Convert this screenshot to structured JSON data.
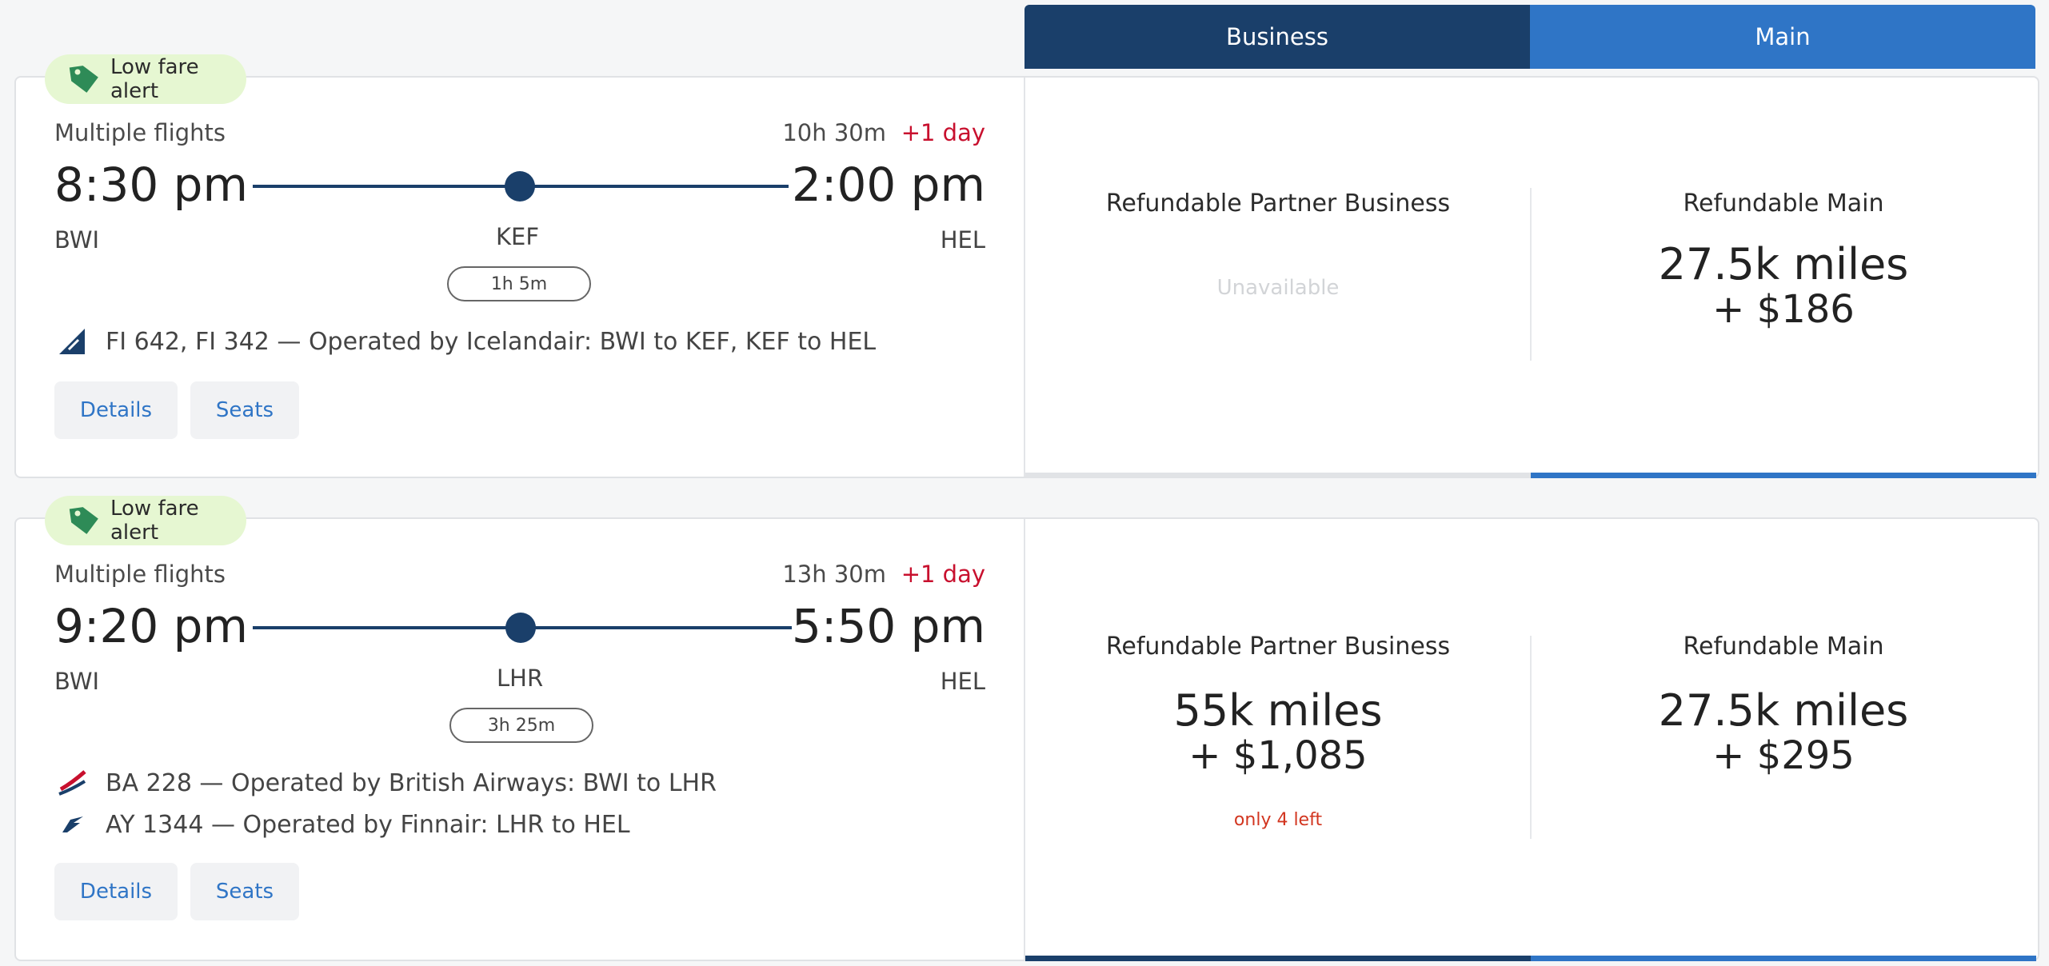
{
  "fare_header": {
    "business": "Business",
    "main": "Main"
  },
  "flights": [
    {
      "badge": "Low fare alert",
      "label": "Multiple flights",
      "duration": "10h 30m",
      "plus_day": "+1 day",
      "depart_time": "8:30 pm",
      "arrive_time": "2:00 pm",
      "origin": "BWI",
      "stop": "KEF",
      "destination": "HEL",
      "layover": "1h 5m",
      "legs": [
        {
          "text": "FI 642, FI 342 — Operated by Icelandair: BWI to KEF, KEF to HEL",
          "icon": "icelandair-logo-icon"
        }
      ],
      "details_label": "Details",
      "seats_label": "Seats",
      "fares": [
        {
          "name": "Refundable Partner Business",
          "unavailable": "Unavailable"
        },
        {
          "name": "Refundable Main",
          "miles": "27.5k miles",
          "cash": "+ $186"
        }
      ]
    },
    {
      "badge": "Low fare alert",
      "label": "Multiple flights",
      "duration": "13h 30m",
      "plus_day": "+1 day",
      "depart_time": "9:20 pm",
      "arrive_time": "5:50 pm",
      "origin": "BWI",
      "stop": "LHR",
      "destination": "HEL",
      "layover": "3h 25m",
      "legs": [
        {
          "text": "BA 228 — Operated by British Airways: BWI to LHR",
          "icon": "british-airways-logo-icon"
        },
        {
          "text": "AY 1344 — Operated by Finnair: LHR to HEL",
          "icon": "finnair-logo-icon"
        }
      ],
      "details_label": "Details",
      "seats_label": "Seats",
      "fares": [
        {
          "name": "Refundable Partner Business",
          "miles": "55k miles",
          "cash": "+ $1,085",
          "seats_left": "only 4 left"
        },
        {
          "name": "Refundable Main",
          "miles": "27.5k miles",
          "cash": "+ $295"
        }
      ]
    }
  ],
  "colors": {
    "business": "#1a3f6a",
    "main": "#2f75c6",
    "alert": "#c8102e",
    "badge_bg": "#e6f7d2"
  }
}
